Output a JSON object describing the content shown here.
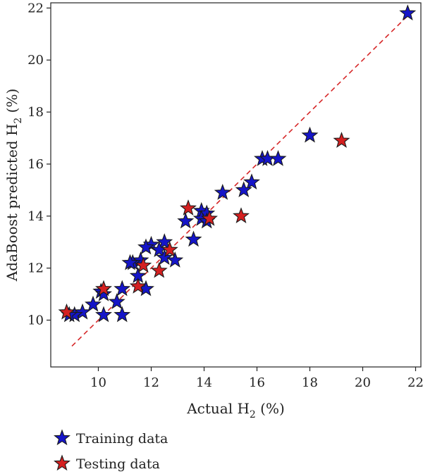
{
  "chart_data": {
    "type": "scatter",
    "xlabel": "Actual H",
    "xlabel_sub": "2",
    "xlabel_tail": " (%)",
    "ylabel": "AdaBoost predicted H",
    "ylabel_sub": "2",
    "ylabel_tail": " (%)",
    "xlim": [
      8.2,
      22.2
    ],
    "ylim": [
      8.2,
      22.2
    ],
    "xticks": [
      10,
      12,
      14,
      16,
      18,
      20,
      22
    ],
    "yticks": [
      10,
      12,
      14,
      16,
      18,
      20,
      22
    ],
    "grid": false,
    "legend_placement": "below plot, left",
    "reference_line": {
      "style": "dashed",
      "color": "#d62728",
      "x": [
        9.0,
        21.8
      ],
      "y": [
        9.0,
        21.8
      ]
    },
    "series": [
      {
        "name": "Training data",
        "marker": "star",
        "color": "#1515c8",
        "points": [
          [
            21.7,
            21.8
          ],
          [
            18.0,
            17.1
          ],
          [
            16.2,
            16.2
          ],
          [
            16.4,
            16.2
          ],
          [
            16.8,
            16.2
          ],
          [
            15.8,
            15.3
          ],
          [
            15.5,
            15.0
          ],
          [
            14.7,
            14.9
          ],
          [
            13.9,
            14.2
          ],
          [
            14.1,
            14.1
          ],
          [
            13.3,
            13.8
          ],
          [
            13.9,
            13.9
          ],
          [
            14.1,
            13.8
          ],
          [
            13.6,
            13.1
          ],
          [
            12.5,
            13.0
          ],
          [
            12.0,
            12.9
          ],
          [
            11.8,
            12.8
          ],
          [
            12.3,
            12.7
          ],
          [
            12.5,
            12.4
          ],
          [
            12.9,
            12.3
          ],
          [
            11.6,
            12.3
          ],
          [
            11.3,
            12.2
          ],
          [
            11.2,
            12.2
          ],
          [
            11.5,
            11.7
          ],
          [
            11.8,
            11.2
          ],
          [
            10.9,
            11.2
          ],
          [
            10.1,
            11.1
          ],
          [
            10.2,
            11.0
          ],
          [
            10.7,
            10.7
          ],
          [
            9.8,
            10.6
          ],
          [
            9.4,
            10.3
          ],
          [
            9.1,
            10.2
          ],
          [
            8.9,
            10.2
          ],
          [
            10.2,
            10.2
          ],
          [
            10.9,
            10.2
          ]
        ]
      },
      {
        "name": "Testing data",
        "marker": "star",
        "color": "#d42020",
        "points": [
          [
            19.2,
            16.9
          ],
          [
            15.4,
            14.0
          ],
          [
            13.4,
            14.3
          ],
          [
            14.2,
            13.9
          ],
          [
            12.7,
            12.7
          ],
          [
            11.7,
            12.1
          ],
          [
            12.3,
            11.9
          ],
          [
            11.5,
            11.3
          ],
          [
            10.2,
            11.2
          ],
          [
            8.8,
            10.3
          ]
        ]
      }
    ]
  }
}
